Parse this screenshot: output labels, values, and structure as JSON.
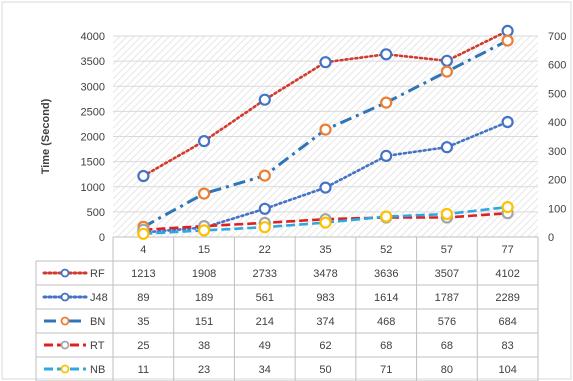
{
  "chart_data": {
    "type": "line",
    "ylabel": "Time (Second)",
    "categories": [
      "4",
      "15",
      "22",
      "35",
      "52",
      "57",
      "77"
    ],
    "ylim_left": [
      0,
      4000
    ],
    "yticks_left": [
      0,
      500,
      1000,
      1500,
      2000,
      2500,
      3000,
      3500,
      4000
    ],
    "ylim_right": [
      0,
      700
    ],
    "yticks_right": [
      0,
      100,
      200,
      300,
      400,
      500,
      600,
      700
    ],
    "grid": true,
    "legend": "data table below plot",
    "series": [
      {
        "name": "RF",
        "axis": "left",
        "color": "#d03a2f",
        "marker_color": "#4472c4",
        "line_style": "dotted",
        "values": [
          1213,
          1908,
          2733,
          3478,
          3636,
          3507,
          4102
        ]
      },
      {
        "name": "J48",
        "axis": "left",
        "color": "#4472c4",
        "marker_color": "#4472c4",
        "line_style": "dotted",
        "values": [
          89,
          189,
          561,
          983,
          1614,
          1787,
          2289
        ]
      },
      {
        "name": "BN",
        "axis": "right",
        "color": "#2e75b6",
        "marker_color": "#ed7d31",
        "line_style": "dashdot",
        "values": [
          35,
          151,
          214,
          374,
          468,
          576,
          684
        ]
      },
      {
        "name": "RT",
        "axis": "right",
        "color": "#e02020",
        "marker_color": "#a5a5a5",
        "line_style": "dashed",
        "values": [
          25,
          38,
          49,
          62,
          68,
          68,
          83
        ]
      },
      {
        "name": "NB",
        "axis": "right",
        "color": "#2ea8e0",
        "marker_color": "#ffc000",
        "line_style": "dashed",
        "values": [
          11,
          23,
          34,
          50,
          71,
          80,
          104
        ]
      }
    ]
  }
}
